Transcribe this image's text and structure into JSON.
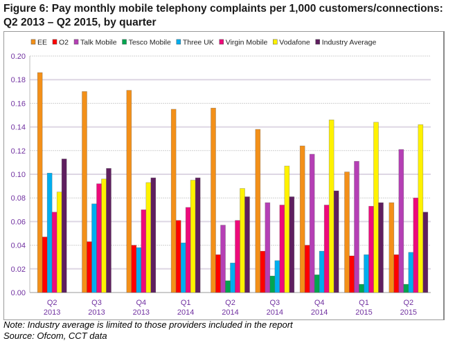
{
  "title_line1": "Figure 6: Pay monthly mobile telephony complaints per 1,000 customers/connections:",
  "title_line2": "Q2 2013 – Q2 2015, by quarter",
  "note": "Note: Industry average is limited to those providers included in the report",
  "source": "Source: Ofcom, CCT data",
  "chart_data": {
    "type": "bar",
    "title": "",
    "xlabel": "",
    "ylabel": "",
    "ylim": [
      0,
      0.2
    ],
    "yticks": [
      "0.00",
      "0.02",
      "0.04",
      "0.06",
      "0.08",
      "0.10",
      "0.12",
      "0.14",
      "0.16",
      "0.18",
      "0.20"
    ],
    "grid": true,
    "legend": "top",
    "categories": [
      [
        "Q2",
        "2013"
      ],
      [
        "Q3",
        "2013"
      ],
      [
        "Q4",
        "2013"
      ],
      [
        "Q1",
        "2014"
      ],
      [
        "Q2",
        "2014"
      ],
      [
        "Q3",
        "2014"
      ],
      [
        "Q4",
        "2014"
      ],
      [
        "Q1",
        "2015"
      ],
      [
        "Q2",
        "2015"
      ]
    ],
    "series": [
      {
        "name": "EE",
        "color": "#F39019",
        "values": [
          0.186,
          0.17,
          0.171,
          0.155,
          0.156,
          0.138,
          0.124,
          0.102,
          0.076
        ]
      },
      {
        "name": "O2",
        "color": "#FF0000",
        "values": [
          0.047,
          0.043,
          0.04,
          0.061,
          0.032,
          0.035,
          0.04,
          0.031,
          0.032
        ]
      },
      {
        "name": "Talk Mobile",
        "color": "#B53FB5",
        "values": [
          null,
          null,
          null,
          null,
          0.057,
          0.076,
          0.117,
          0.111,
          0.121
        ]
      },
      {
        "name": "Tesco Mobile",
        "color": "#00A650",
        "values": [
          null,
          null,
          null,
          null,
          0.01,
          0.014,
          0.015,
          0.007,
          0.007
        ]
      },
      {
        "name": "Three UK",
        "color": "#00AEEF",
        "values": [
          0.101,
          0.075,
          0.038,
          0.042,
          0.025,
          0.027,
          0.035,
          0.032,
          0.034
        ]
      },
      {
        "name": "Virgin Mobile",
        "color": "#EE0A7B",
        "values": [
          0.068,
          0.092,
          0.07,
          0.072,
          0.061,
          0.074,
          0.074,
          0.073,
          0.08
        ]
      },
      {
        "name": "Vodafone",
        "color": "#FFF200",
        "values": [
          0.085,
          0.096,
          0.093,
          0.095,
          0.088,
          0.107,
          0.146,
          0.144,
          0.142
        ]
      },
      {
        "name": "Industry Average",
        "color": "#5F1F5F",
        "values": [
          0.113,
          0.105,
          0.097,
          0.097,
          0.081,
          0.081,
          0.086,
          0.076,
          0.068
        ]
      }
    ],
    "axis_label_color": "#7030A0"
  }
}
